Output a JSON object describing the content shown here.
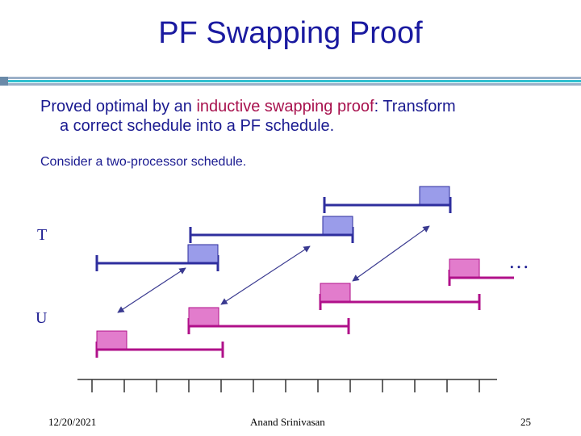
{
  "slide": {
    "title": "PF Swapping Proof",
    "bullet1": {
      "before": "Proved optimal by an ",
      "highlight": "inductive swapping proof",
      "after": ": Transform",
      "line2": "a correct schedule into a PF schedule."
    },
    "bullet2": "Consider a two-processor schedule.",
    "diagram": {
      "label_t": "T",
      "label_u": "U",
      "ellipsis": "…"
    },
    "footer": {
      "date": "12/20/2021",
      "author": "Anand Srinivasan",
      "page": "25"
    }
  },
  "colors": {
    "title": "#1a1aa0",
    "text": "#1a1a90",
    "highlight": "#a8124e",
    "t_line": "#2e2e9e",
    "t_box": "#9a9cea",
    "u_line": "#b0108a",
    "u_box": "#e27ccc",
    "arrow": "#3a3a90"
  }
}
